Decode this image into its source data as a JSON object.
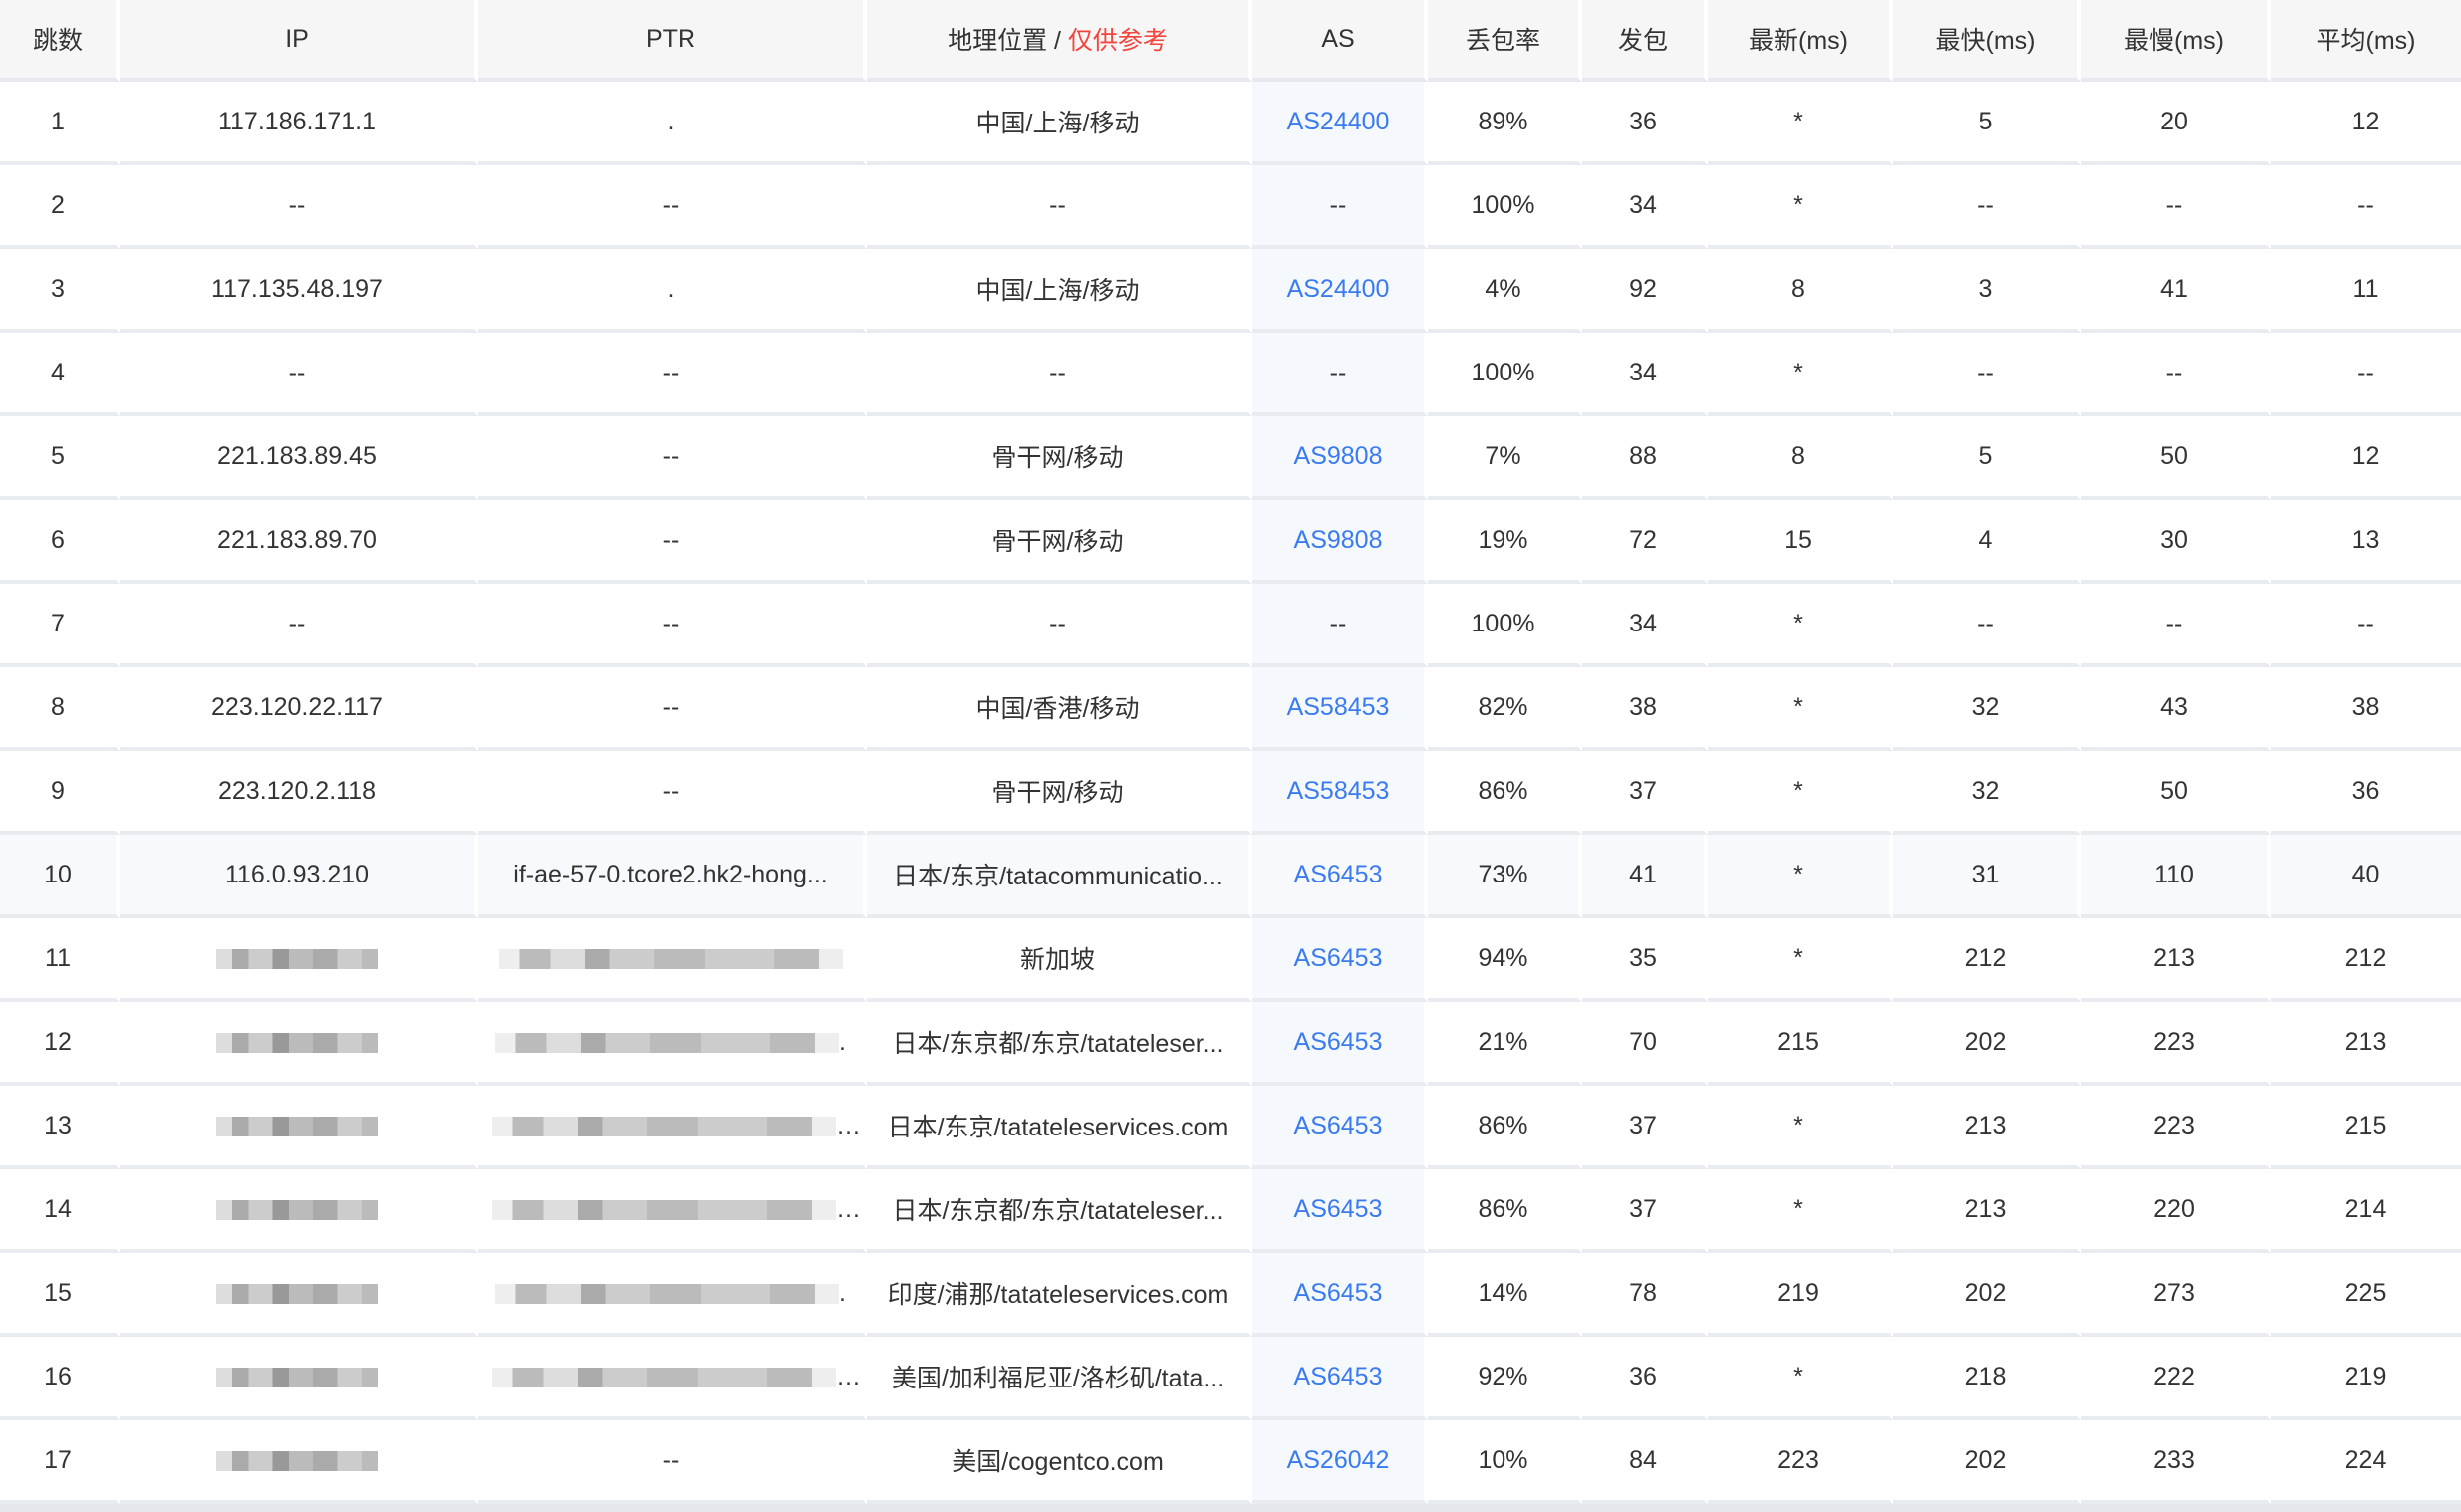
{
  "headers": {
    "hop": "跳数",
    "ip": "IP",
    "ptr": "PTR",
    "geo": "地理位置 / ",
    "geo_note": "仅供参考",
    "as": "AS",
    "loss": "丢包率",
    "sent": "发包",
    "last": "最新(ms)",
    "best": "最快(ms)",
    "worst": "最慢(ms)",
    "avg": "平均(ms)"
  },
  "colors": {
    "link": "#3a7bf0",
    "note": "#f5443b",
    "header_bg": "#f6f6f6",
    "as_bg": "#f5f8fc"
  },
  "rows": [
    {
      "hop": "1",
      "ip": "117.186.171.1",
      "ptr": ".",
      "geo": "中国/上海/移动",
      "as": "AS24400",
      "loss": "89%",
      "sent": "36",
      "last": "*",
      "best": "5",
      "worst": "20",
      "avg": "12"
    },
    {
      "hop": "2",
      "ip": "--",
      "ptr": "--",
      "geo": "--",
      "as": "--",
      "loss": "100%",
      "sent": "34",
      "last": "*",
      "best": "--",
      "worst": "--",
      "avg": "--"
    },
    {
      "hop": "3",
      "ip": "117.135.48.197",
      "ptr": ".",
      "geo": "中国/上海/移动",
      "as": "AS24400",
      "loss": "4%",
      "sent": "92",
      "last": "8",
      "best": "3",
      "worst": "41",
      "avg": "11"
    },
    {
      "hop": "4",
      "ip": "--",
      "ptr": "--",
      "geo": "--",
      "as": "--",
      "loss": "100%",
      "sent": "34",
      "last": "*",
      "best": "--",
      "worst": "--",
      "avg": "--"
    },
    {
      "hop": "5",
      "ip": "221.183.89.45",
      "ptr": "--",
      "geo": "骨干网/移动",
      "as": "AS9808",
      "loss": "7%",
      "sent": "88",
      "last": "8",
      "best": "5",
      "worst": "50",
      "avg": "12"
    },
    {
      "hop": "6",
      "ip": "221.183.89.70",
      "ptr": "--",
      "geo": "骨干网/移动",
      "as": "AS9808",
      "loss": "19%",
      "sent": "72",
      "last": "15",
      "best": "4",
      "worst": "30",
      "avg": "13"
    },
    {
      "hop": "7",
      "ip": "--",
      "ptr": "--",
      "geo": "--",
      "as": "--",
      "loss": "100%",
      "sent": "34",
      "last": "*",
      "best": "--",
      "worst": "--",
      "avg": "--"
    },
    {
      "hop": "8",
      "ip": "223.120.22.117",
      "ptr": "--",
      "geo": "中国/香港/移动",
      "as": "AS58453",
      "loss": "82%",
      "sent": "38",
      "last": "*",
      "best": "32",
      "worst": "43",
      "avg": "38"
    },
    {
      "hop": "9",
      "ip": "223.120.2.118",
      "ptr": "--",
      "geo": "骨干网/移动",
      "as": "AS58453",
      "loss": "86%",
      "sent": "37",
      "last": "*",
      "best": "32",
      "worst": "50",
      "avg": "36"
    },
    {
      "hop": "10",
      "ip": "116.0.93.210",
      "ptr": "if-ae-57-0.tcore2.hk2-hong...",
      "geo": "日本/东京/tatacommunicatio...",
      "as": "AS6453",
      "loss": "73%",
      "sent": "41",
      "last": "*",
      "best": "31",
      "worst": "110",
      "avg": "40",
      "highlight": true
    },
    {
      "hop": "11",
      "ip_redacted": true,
      "ptr_redacted": true,
      "geo": "新加坡",
      "as": "AS6453",
      "loss": "94%",
      "sent": "35",
      "last": "*",
      "best": "212",
      "worst": "213",
      "avg": "212"
    },
    {
      "hop": "12",
      "ip_redacted": true,
      "ptr_redacted": true,
      "ptr_suffix": ".",
      "geo": "日本/东京都/东京/tatateleser...",
      "as": "AS6453",
      "loss": "21%",
      "sent": "70",
      "last": "215",
      "best": "202",
      "worst": "223",
      "avg": "213"
    },
    {
      "hop": "13",
      "ip_redacted": true,
      "ptr_redacted": true,
      "ptr_suffix": "..",
      "geo": "日本/东京/tatateleservices.com",
      "as": "AS6453",
      "loss": "86%",
      "sent": "37",
      "last": "*",
      "best": "213",
      "worst": "223",
      "avg": "215"
    },
    {
      "hop": "14",
      "ip_redacted": true,
      "ptr_redacted": true,
      "ptr_suffix": "...",
      "geo": "日本/东京都/东京/tatateleser...",
      "as": "AS6453",
      "loss": "86%",
      "sent": "37",
      "last": "*",
      "best": "213",
      "worst": "220",
      "avg": "214"
    },
    {
      "hop": "15",
      "ip_redacted": true,
      "ptr_redacted": true,
      "ptr_suffix": ".",
      "geo": "印度/浦那/tatateleservices.com",
      "as": "AS6453",
      "loss": "14%",
      "sent": "78",
      "last": "219",
      "best": "202",
      "worst": "273",
      "avg": "225"
    },
    {
      "hop": "16",
      "ip_redacted": true,
      "ptr_redacted": true,
      "ptr_suffix": "-l...",
      "geo": "美国/加利福尼亚/洛杉矶/tata...",
      "as": "AS6453",
      "loss": "92%",
      "sent": "36",
      "last": "*",
      "best": "218",
      "worst": "222",
      "avg": "219"
    },
    {
      "hop": "17",
      "ip_redacted": true,
      "ptr": "--",
      "geo": "美国/cogentco.com",
      "as": "AS26042",
      "loss": "10%",
      "sent": "84",
      "last": "223",
      "best": "202",
      "worst": "233",
      "avg": "224"
    }
  ]
}
